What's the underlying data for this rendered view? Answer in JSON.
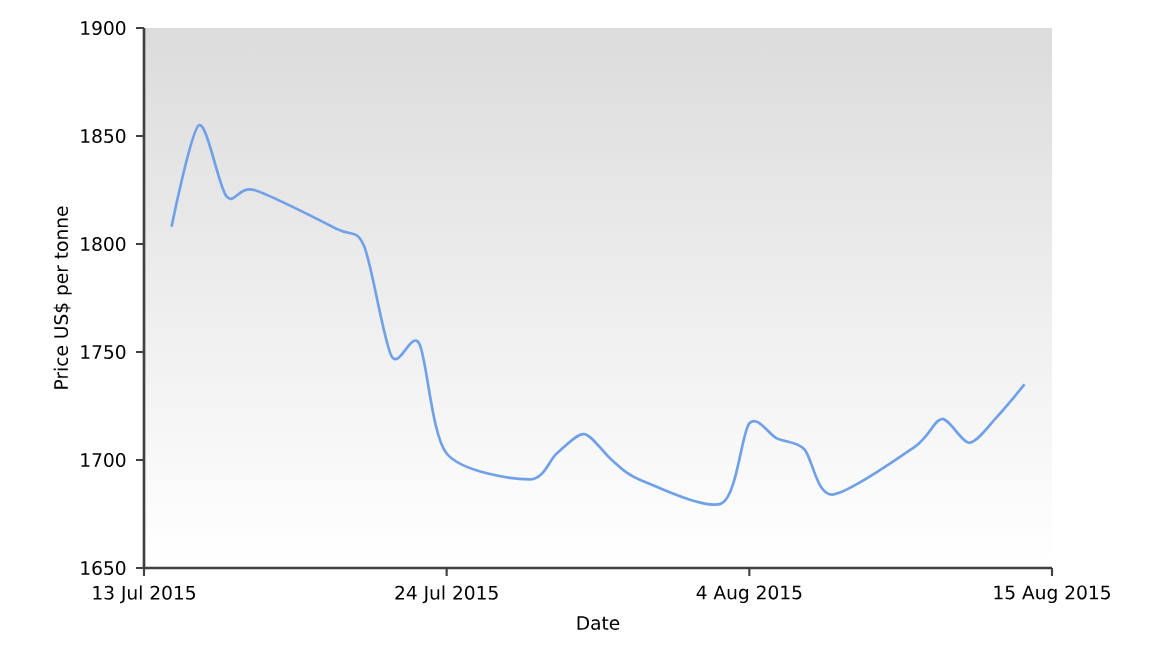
{
  "chart_data": {
    "type": "line",
    "xlabel": "Date",
    "ylabel": "Price US$ per tonne",
    "x": [
      "2015-07-14",
      "2015-07-15",
      "2015-07-16",
      "2015-07-17",
      "2015-07-20",
      "2015-07-21",
      "2015-07-22",
      "2015-07-23",
      "2015-07-24",
      "2015-07-27",
      "2015-07-28",
      "2015-07-29",
      "2015-07-30",
      "2015-07-31",
      "2015-08-03",
      "2015-08-04",
      "2015-08-05",
      "2015-08-06",
      "2015-08-07",
      "2015-08-10",
      "2015-08-11",
      "2015-08-12",
      "2015-08-13",
      "2015-08-14"
    ],
    "series": [
      {
        "color": "#6fa0e8",
        "values": [
          1808,
          1855,
          1822,
          1825,
          1807,
          1799,
          1748,
          1754,
          1703,
          1691,
          1703,
          1712,
          1700,
          1691,
          1680,
          1717,
          1710,
          1705,
          1684,
          1706,
          1719,
          1708,
          1720,
          1735
        ]
      }
    ],
    "xlim": [
      "2015-07-13",
      "2015-08-15"
    ],
    "xticks": [
      {
        "value": "2015-07-13",
        "label": "13 Jul 2015"
      },
      {
        "value": "2015-07-24",
        "label": "24 Jul 2015"
      },
      {
        "value": "2015-08-04",
        "label": "4 Aug 2015"
      },
      {
        "value": "2015-08-15",
        "label": "15 Aug 2015"
      }
    ],
    "ylim": [
      1650,
      1900
    ],
    "yticks": [
      1650,
      1700,
      1750,
      1800,
      1850,
      1900
    ],
    "grid": false,
    "marker": "none",
    "line_style": "solid"
  }
}
